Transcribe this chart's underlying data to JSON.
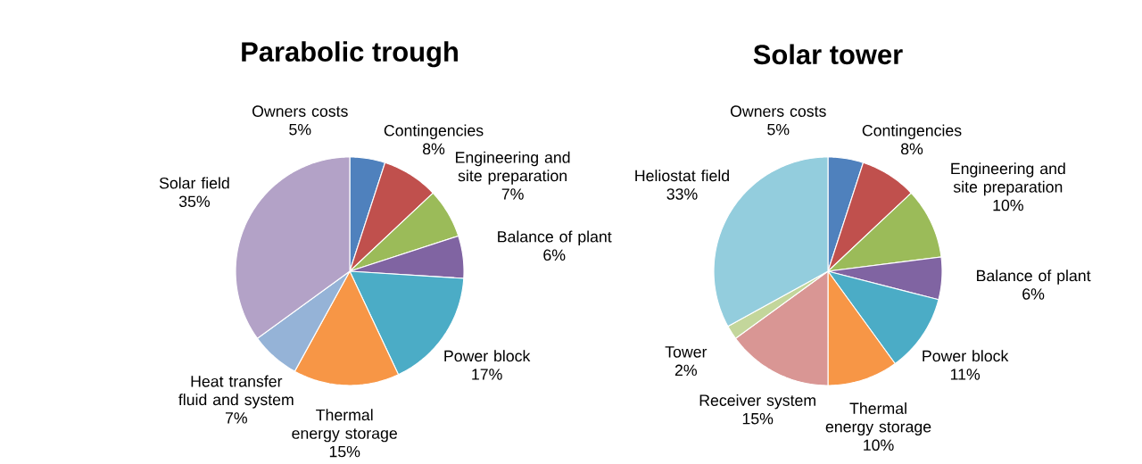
{
  "chart_data": [
    {
      "type": "pie",
      "title": "Parabolic trough",
      "categories": [
        "Owners costs",
        "Contingencies",
        "Engineering and site preparation",
        "Balance of plant",
        "Power block",
        "Thermal energy storage",
        "Heat transfer fluid and system",
        "Solar field"
      ],
      "values": [
        5,
        8,
        7,
        6,
        17,
        15,
        7,
        35
      ],
      "value_labels": [
        "5%",
        "8%",
        "7%",
        "6%",
        "17%",
        "15%",
        "7%",
        "35%"
      ],
      "colors": [
        "#4f81bd",
        "#c0504d",
        "#9bbb59",
        "#8064a2",
        "#4bacc6",
        "#f79646",
        "#95b3d7",
        "#b3a2c7"
      ]
    },
    {
      "type": "pie",
      "title": "Solar tower",
      "categories": [
        "Owners costs",
        "Contingencies",
        "Engineering and site preparation",
        "Balance of plant",
        "Power block",
        "Thermal energy storage",
        "Receiver system",
        "Tower",
        "Heliostat field"
      ],
      "values": [
        5,
        8,
        10,
        6,
        11,
        10,
        15,
        2,
        33
      ],
      "value_labels": [
        "5%",
        "8%",
        "10%",
        "6%",
        "11%",
        "10%",
        "15%",
        "2%",
        "33%"
      ],
      "colors": [
        "#4f81bd",
        "#c0504d",
        "#9bbb59",
        "#8064a2",
        "#4bacc6",
        "#f79646",
        "#d99694",
        "#c3d69b",
        "#93cddd"
      ]
    }
  ]
}
